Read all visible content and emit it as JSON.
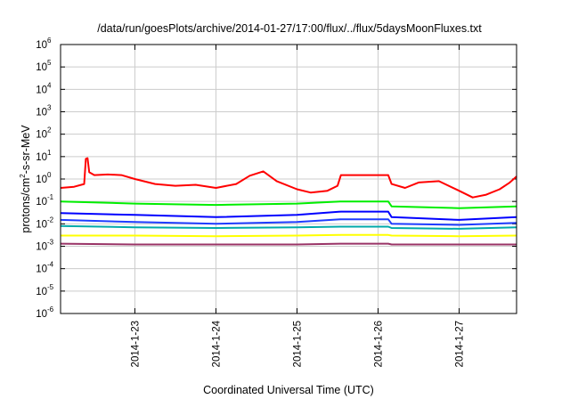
{
  "chart_data": {
    "type": "line",
    "title": "/data/run/goesPlots/archive/2014-01-27/17:00/flux/../flux/5daysMoonFluxes.txt",
    "xlabel": "Coordinated Universal Time (UTC)",
    "ylabel": {
      "prefix": "protons/cm",
      "exp": "2",
      "suffix": "-s-sr-MeV"
    },
    "x_range": [
      "2014-01-22T02:00",
      "2014-01-27T17:00"
    ],
    "x_ticks": [
      {
        "label": "2014-1-23",
        "date": "2014-01-23T00:00"
      },
      {
        "label": "2014-1-24",
        "date": "2014-01-24T00:00"
      },
      {
        "label": "2014-1-25",
        "date": "2014-01-25T00:00"
      },
      {
        "label": "2014-1-26",
        "date": "2014-01-26T00:00"
      },
      {
        "label": "2014-1-27",
        "date": "2014-01-27T00:00"
      }
    ],
    "y_scale": "log",
    "ylim": [
      1e-06,
      1000000.0
    ],
    "y_ticks": [
      {
        "base": "10",
        "exp": "-6",
        "value": 1e-06
      },
      {
        "base": "10",
        "exp": "-5",
        "value": 1e-05
      },
      {
        "base": "10",
        "exp": "-4",
        "value": 0.0001
      },
      {
        "base": "10",
        "exp": "-3",
        "value": 0.001
      },
      {
        "base": "10",
        "exp": "-2",
        "value": 0.01
      },
      {
        "base": "10",
        "exp": "-1",
        "value": 0.1
      },
      {
        "base": "10",
        "exp": "0",
        "value": 1
      },
      {
        "base": "10",
        "exp": "1",
        "value": 10
      },
      {
        "base": "10",
        "exp": "2",
        "value": 100
      },
      {
        "base": "10",
        "exp": "3",
        "value": 1000
      },
      {
        "base": "10",
        "exp": "4",
        "value": 10000
      },
      {
        "base": "10",
        "exp": "5",
        "value": 100000
      },
      {
        "base": "10",
        "exp": "6",
        "value": 1000000
      }
    ],
    "grid": true,
    "legend": "none",
    "series": [
      {
        "color": "#ff0000",
        "x": [
          "2014-01-22T02:00",
          "2014-01-22T06:00",
          "2014-01-22T09:00",
          "2014-01-22T09:30",
          "2014-01-22T10:00",
          "2014-01-22T10:30",
          "2014-01-22T12:00",
          "2014-01-22T16:00",
          "2014-01-22T20:00",
          "2014-01-23T00:00",
          "2014-01-23T06:00",
          "2014-01-23T12:00",
          "2014-01-23T18:00",
          "2014-01-24T00:00",
          "2014-01-24T06:00",
          "2014-01-24T10:00",
          "2014-01-24T14:00",
          "2014-01-24T18:00",
          "2014-01-25T00:00",
          "2014-01-25T04:00",
          "2014-01-25T09:00",
          "2014-01-25T12:00",
          "2014-01-25T13:00",
          "2014-01-25T18:00",
          "2014-01-26T00:00",
          "2014-01-26T03:00",
          "2014-01-26T04:00",
          "2014-01-26T08:00",
          "2014-01-26T12:00",
          "2014-01-26T18:00",
          "2014-01-27T00:00",
          "2014-01-27T04:00",
          "2014-01-27T08:00",
          "2014-01-27T12:00",
          "2014-01-27T15:00",
          "2014-01-27T17:00"
        ],
        "y": [
          0.4,
          0.45,
          0.6,
          8.0,
          8.5,
          2.0,
          1.5,
          1.6,
          1.5,
          1.0,
          0.6,
          0.5,
          0.55,
          0.4,
          0.6,
          1.4,
          2.2,
          0.8,
          0.35,
          0.25,
          0.3,
          0.5,
          1.5,
          1.5,
          1.5,
          1.5,
          0.6,
          0.4,
          0.7,
          0.8,
          0.3,
          0.15,
          0.2,
          0.35,
          0.7,
          1.3
        ]
      },
      {
        "color": "#00ee00",
        "x": [
          "2014-01-22T02:00",
          "2014-01-23T00:00",
          "2014-01-24T00:00",
          "2014-01-25T00:00",
          "2014-01-25T13:00",
          "2014-01-26T03:00",
          "2014-01-26T04:00",
          "2014-01-27T00:00",
          "2014-01-27T17:00"
        ],
        "y": [
          0.1,
          0.08,
          0.07,
          0.08,
          0.1,
          0.1,
          0.06,
          0.05,
          0.06
        ]
      },
      {
        "color": "#0000ff",
        "x": [
          "2014-01-22T02:00",
          "2014-01-23T00:00",
          "2014-01-24T00:00",
          "2014-01-25T00:00",
          "2014-01-25T13:00",
          "2014-01-26T03:00",
          "2014-01-26T04:00",
          "2014-01-27T00:00",
          "2014-01-27T17:00"
        ],
        "y": [
          0.03,
          0.025,
          0.02,
          0.025,
          0.035,
          0.035,
          0.02,
          0.015,
          0.02
        ]
      },
      {
        "color": "#1e3cff",
        "x": [
          "2014-01-22T02:00",
          "2014-01-23T00:00",
          "2014-01-24T00:00",
          "2014-01-25T00:00",
          "2014-01-25T13:00",
          "2014-01-26T03:00",
          "2014-01-26T04:00",
          "2014-01-27T00:00",
          "2014-01-27T17:00"
        ],
        "y": [
          0.015,
          0.012,
          0.01,
          0.012,
          0.016,
          0.016,
          0.01,
          0.009,
          0.011
        ]
      },
      {
        "color": "#00aaaa",
        "x": [
          "2014-01-22T02:00",
          "2014-01-23T00:00",
          "2014-01-24T00:00",
          "2014-01-25T00:00",
          "2014-01-25T13:00",
          "2014-01-26T03:00",
          "2014-01-26T04:00",
          "2014-01-27T00:00",
          "2014-01-27T17:00"
        ],
        "y": [
          0.008,
          0.007,
          0.0065,
          0.007,
          0.0075,
          0.0075,
          0.0065,
          0.006,
          0.007
        ]
      },
      {
        "color": "#ffff00",
        "x": [
          "2014-01-22T02:00",
          "2014-01-23T00:00",
          "2014-01-24T00:00",
          "2014-01-25T00:00",
          "2014-01-25T13:00",
          "2014-01-26T03:00",
          "2014-01-26T04:00",
          "2014-01-27T00:00",
          "2014-01-27T17:00"
        ],
        "y": [
          0.003,
          0.003,
          0.0028,
          0.003,
          0.0032,
          0.0032,
          0.003,
          0.0028,
          0.003
        ]
      },
      {
        "color": "#993366",
        "x": [
          "2014-01-22T02:00",
          "2014-01-23T00:00",
          "2014-01-24T00:00",
          "2014-01-25T00:00",
          "2014-01-25T13:00",
          "2014-01-26T03:00",
          "2014-01-26T04:00",
          "2014-01-27T00:00",
          "2014-01-27T17:00"
        ],
        "y": [
          0.0013,
          0.0012,
          0.0012,
          0.0012,
          0.0013,
          0.0013,
          0.0012,
          0.0012,
          0.0012
        ]
      }
    ]
  }
}
